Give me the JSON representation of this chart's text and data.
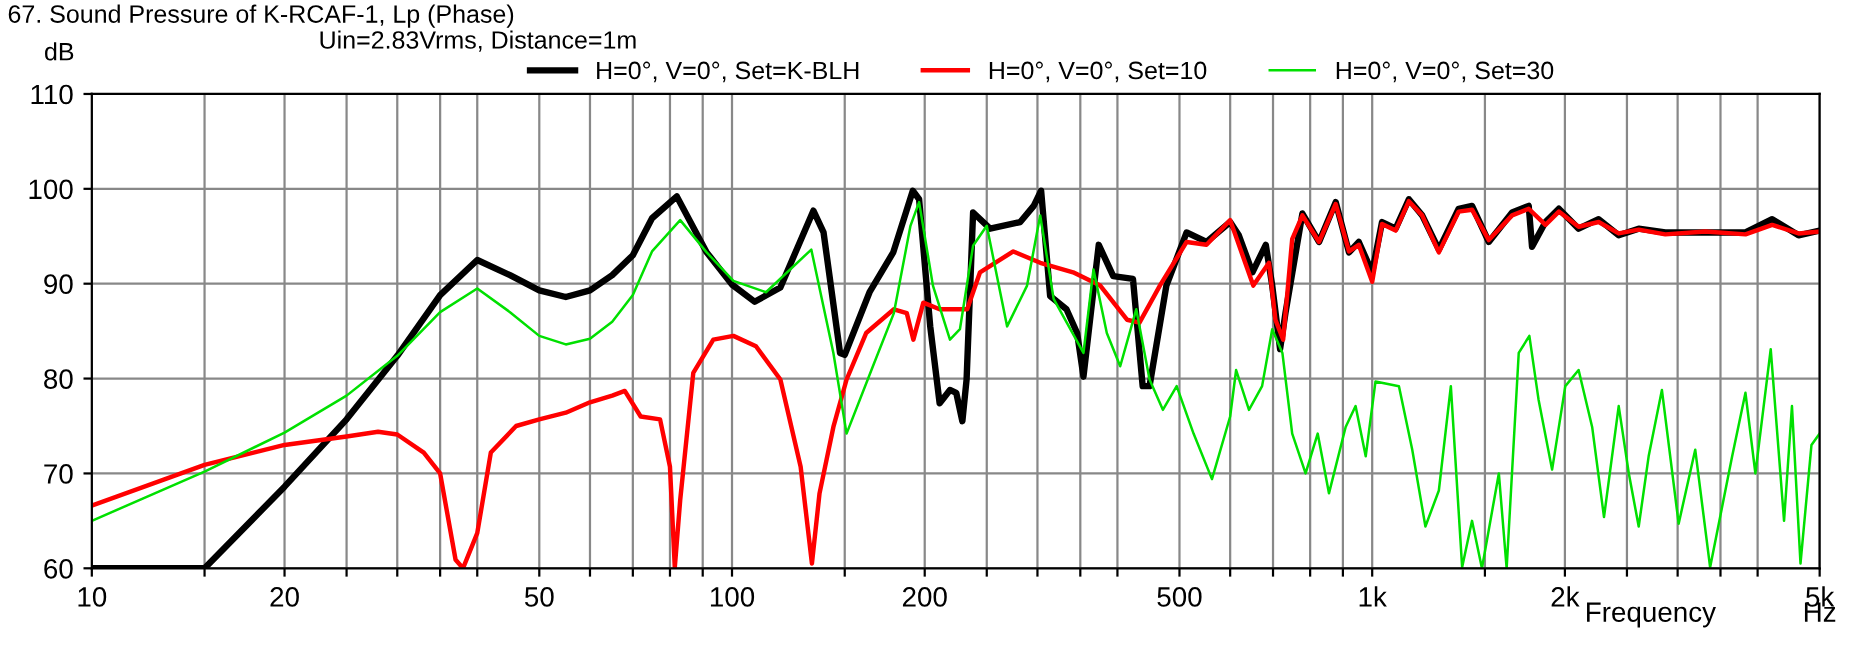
{
  "chart_data": {
    "type": "line",
    "title": "67. Sound Pressure of K-RCAF-1, Lp (Phase)",
    "subtitle": "Uin=2.83Vrms, Distance=1m",
    "xlabel": "Frequency",
    "ylabel": "dB",
    "annotations": [
      "Hz"
    ],
    "log": "x",
    "grid": true,
    "legend": "top",
    "marker": "none",
    "line_style": "solid",
    "xlim": [
      10,
      5000
    ],
    "ylim": [
      60,
      110
    ],
    "xticks": [
      10,
      {
        "value": 15,
        "label": null
      },
      20,
      {
        "value": 25,
        "label": null
      },
      {
        "value": 30,
        "label": null
      },
      {
        "value": 35,
        "label": null
      },
      {
        "value": 40,
        "label": null
      },
      50,
      {
        "value": 60,
        "label": null
      },
      {
        "value": 70,
        "label": null
      },
      {
        "value": 80,
        "label": null
      },
      {
        "value": 90,
        "label": null
      },
      100,
      {
        "value": 150,
        "label": null
      },
      {
        "value": 200,
        "label": "200"
      },
      {
        "value": 250,
        "label": null
      },
      {
        "value": 300,
        "label": null
      },
      {
        "value": 350,
        "label": null
      },
      {
        "value": 400,
        "label": null
      },
      {
        "value": 500,
        "label": "500"
      },
      {
        "value": 600,
        "label": null
      },
      {
        "value": 700,
        "label": null
      },
      {
        "value": 800,
        "label": null
      },
      {
        "value": 900,
        "label": null
      },
      {
        "value": 1000,
        "label": "1k"
      },
      {
        "value": 1500,
        "label": null
      },
      {
        "value": 2000,
        "label": "2k"
      },
      {
        "value": 2500,
        "label": null
      },
      {
        "value": 3000,
        "label": null
      },
      {
        "value": 3500,
        "label": null
      },
      {
        "value": 4000,
        "label": null
      },
      {
        "value": 5000,
        "label": "5k"
      }
    ],
    "yticks": [
      60,
      70,
      80,
      90,
      100,
      110
    ],
    "series": [
      {
        "name": "H=0°, V=0°, Set=K-BLH",
        "color": "#000000",
        "x": [
          10,
          15,
          20,
          25,
          30,
          35,
          40,
          45,
          50,
          55,
          60,
          65,
          70,
          75,
          82,
          91.3,
          100,
          108.5,
          119,
          134,
          139,
          147.5,
          150,
          164,
          178.6,
          191.6,
          196,
          204,
          211,
          219,
          224,
          229,
          232.5,
          238,
          253,
          282,
          296,
          304,
          314,
          333,
          346,
          354,
          374,
          394,
          423,
          438,
          449,
          477,
          513,
          551,
          600,
          619,
          650,
          682,
          698,
          718,
          732,
          778,
          826,
          877,
          920,
          953,
          1000,
          1036,
          1088,
          1141,
          1197,
          1271,
          1365,
          1432,
          1521,
          1654,
          1756,
          1777,
          1865,
          1957,
          2101,
          2258,
          2427,
          2608,
          2870,
          3315,
          3829,
          4215,
          4635,
          5000
        ],
        "values": [
          60,
          60,
          68.6,
          75.7,
          82.4,
          88.8,
          92.5,
          90.9,
          89.3,
          88.6,
          89.3,
          90.9,
          93,
          96.9,
          99.2,
          93.3,
          89.9,
          88.1,
          89.6,
          97.7,
          95.4,
          82.7,
          82.5,
          89.1,
          93.3,
          99.8,
          98.9,
          85.5,
          77.4,
          78.8,
          78.5,
          75.5,
          79.9,
          97.5,
          95.8,
          96.5,
          98.2,
          99.8,
          88.7,
          87.3,
          84.8,
          80.2,
          94.1,
          90.8,
          90.5,
          79.2,
          79.2,
          89.8,
          95.4,
          94.4,
          96.5,
          95.1,
          91.2,
          94.1,
          89.8,
          83.1,
          86.9,
          97.4,
          94.4,
          98.6,
          93.3,
          94.4,
          91.2,
          96.5,
          95.8,
          98.9,
          97.2,
          93.6,
          97.9,
          98.2,
          94.4,
          97.5,
          98.2,
          93.9,
          96.5,
          97.9,
          95.8,
          96.8,
          95.1,
          95.8,
          95.4,
          95.4,
          95.4,
          96.8,
          95.1,
          95.6
        ]
      },
      {
        "name": "H=0°, V=0°, Set=10",
        "color": "#ff0000",
        "x": [
          10,
          15,
          20,
          25,
          28,
          30,
          33,
          35,
          37,
          38,
          40,
          42,
          46,
          50,
          55,
          60,
          65,
          68,
          72,
          77.2,
          80,
          81.4,
          83,
          87,
          93.5,
          100.5,
          109,
          119,
          128,
          133.3,
          137,
          144,
          151,
          162,
          179,
          187.5,
          192,
          199,
          211,
          233,
          244,
          275,
          303,
          341,
          376,
          414,
          433,
          466,
          513,
          551,
          600,
          652,
          690,
          706,
          726,
          750,
          778,
          826,
          877,
          920,
          953,
          1000,
          1036,
          1088,
          1141,
          1197,
          1271,
          1365,
          1432,
          1521,
          1654,
          1756,
          1865,
          1957,
          2101,
          2258,
          2427,
          2608,
          2870,
          3315,
          3829,
          4215,
          4635,
          5000
        ],
        "values": [
          66.6,
          70.9,
          73,
          73.9,
          74.4,
          74.1,
          72.2,
          70,
          60.9,
          60,
          63.7,
          72.2,
          75,
          75.7,
          76.4,
          77.5,
          78.2,
          78.7,
          76,
          75.7,
          70.7,
          60.1,
          67.2,
          80.6,
          84.1,
          84.5,
          83.4,
          79.9,
          70.7,
          60.5,
          67.9,
          74.9,
          79.9,
          84.8,
          87.3,
          86.9,
          84.1,
          88,
          87.3,
          87.3,
          91.2,
          93.4,
          92.2,
          91.2,
          89.8,
          86.2,
          85.9,
          89.8,
          94.4,
          94.1,
          96.7,
          89.8,
          92.2,
          86.2,
          84.1,
          94.7,
          97.2,
          94.4,
          98.4,
          93.4,
          94.1,
          90.2,
          96.3,
          95.6,
          98.7,
          97.2,
          93.3,
          97.6,
          97.8,
          94.6,
          97.2,
          97.9,
          96.2,
          97.6,
          96,
          96.5,
          95.3,
          95.7,
          95.2,
          95.5,
          95.2,
          96.2,
          95.3,
          95.5
        ]
      },
      {
        "name": "H=0°, V=0°, Set=30",
        "color": "#00e000",
        "x": [
          10,
          15,
          20,
          25,
          30,
          35,
          40,
          45,
          50,
          55,
          60,
          65,
          70,
          75,
          83,
          91.3,
          100.5,
          113,
          133,
          144,
          151,
          166,
          179,
          190,
          196,
          206,
          219,
          227,
          238,
          250,
          269,
          289,
          303,
          318,
          354,
          367,
          385,
          404,
          428,
          449,
          471,
          495,
          526,
          562,
          600,
          613,
          642,
          673,
          698,
          724,
          750,
          787,
          822,
          856,
          909,
          942,
          977,
          1012,
          1101,
          1155,
          1211,
          1271,
          1327,
          1382,
          1432,
          1484,
          1577,
          1622,
          1694,
          1760,
          1819,
          1910,
          2003,
          2101,
          2206,
          2302,
          2427,
          2517,
          2608,
          2703,
          2835,
          3011,
          3196,
          3372,
          3650,
          3829,
          3968,
          4193,
          4399,
          4526,
          4667,
          4855,
          5000
        ],
        "values": [
          65,
          70.2,
          74.3,
          78.2,
          82.4,
          87,
          89.5,
          87,
          84.5,
          83.6,
          84.2,
          86,
          88.8,
          93.4,
          96.7,
          93.3,
          90.3,
          89.1,
          93.6,
          82.7,
          74.2,
          81.3,
          86.9,
          96.1,
          98.6,
          89.8,
          84.1,
          85.2,
          94,
          96.1,
          85.5,
          89.8,
          97.2,
          88.4,
          82.7,
          91.5,
          84.8,
          81.3,
          87.3,
          79.9,
          76.7,
          79.2,
          74.2,
          69.4,
          76,
          80.9,
          76.7,
          79.2,
          85.2,
          82.7,
          74.2,
          70,
          74.2,
          67.9,
          74.9,
          77.1,
          71.8,
          79.7,
          79.2,
          72.5,
          64.4,
          68.2,
          79.2,
          60.1,
          65,
          60,
          70,
          60,
          82.7,
          84.5,
          77.8,
          70.4,
          79.2,
          80.9,
          74.9,
          65.4,
          77.1,
          70,
          64.4,
          71.8,
          78.8,
          64.7,
          72.5,
          60.1,
          71.8,
          78.5,
          70,
          83.1,
          65,
          77.1,
          60.5,
          73,
          74.2
        ]
      }
    ]
  }
}
